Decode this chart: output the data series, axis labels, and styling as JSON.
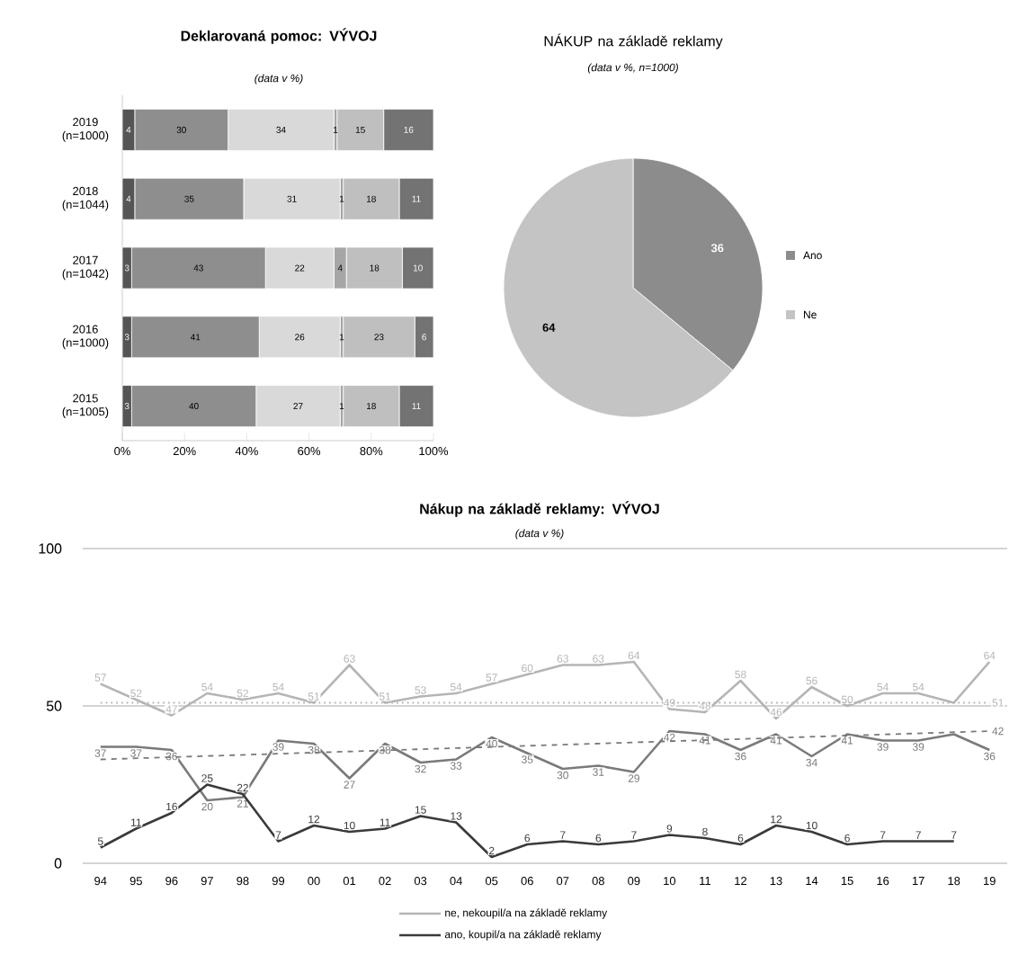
{
  "chart_data": [
    {
      "type": "bar",
      "orientation": "horizontal",
      "stacked": true,
      "title": "Deklarovaná pomoc: VÝVOJ",
      "subtitle": "(data v %)",
      "categories": [
        "2019 (n=1000)",
        "2018 (n=1044)",
        "2017 (n=1042)",
        "2016 (n=1000)",
        "2015 (n=1005)"
      ],
      "series": [
        {
          "color": "#555555",
          "values": [
            4,
            4,
            3,
            3,
            3
          ]
        },
        {
          "color": "#8e8e8e",
          "values": [
            30,
            35,
            43,
            41,
            40
          ]
        },
        {
          "color": "#d9d9d9",
          "values": [
            34,
            31,
            22,
            26,
            27
          ]
        },
        {
          "color": "#a6a6a6",
          "values": [
            1,
            1,
            4,
            1,
            1
          ]
        },
        {
          "color": "#bfbfbf",
          "values": [
            15,
            18,
            18,
            23,
            18
          ]
        },
        {
          "color": "#737373",
          "values": [
            16,
            11,
            10,
            6,
            11
          ]
        }
      ],
      "xlim": [
        0,
        100
      ],
      "xticks": [
        {
          "value": 0,
          "label": "0%"
        },
        {
          "value": 20,
          "label": "20%"
        },
        {
          "value": 40,
          "label": "40%"
        },
        {
          "value": 60,
          "label": "60%"
        },
        {
          "value": 80,
          "label": "80%"
        },
        {
          "value": 100,
          "label": "100%"
        }
      ],
      "data_labels": true
    },
    {
      "type": "pie",
      "title": "NÁKUP na základě reklamy",
      "subtitle": "(data v %, n=1000)",
      "categories": [
        "Ano",
        "Ne"
      ],
      "values": [
        36,
        64
      ],
      "colors": [
        "#8c8c8c",
        "#c4c4c4"
      ],
      "data_labels": true,
      "legend": "right"
    },
    {
      "type": "line",
      "title": "Nákup na základě reklamy: VÝVOJ",
      "subtitle": "(data v %)",
      "categories": [
        "94",
        "95",
        "96",
        "97",
        "98",
        "99",
        "00",
        "01",
        "02",
        "03",
        "04",
        "05",
        "06",
        "07",
        "08",
        "09",
        "10",
        "11",
        "12",
        "13",
        "14",
        "15",
        "16",
        "17",
        "18",
        "19"
      ],
      "series": [
        {
          "name": "ne, nekoupil/a na základě reklamy",
          "color": "#b5b5b5",
          "values": [
            57,
            52,
            47,
            54,
            52,
            54,
            51,
            63,
            51,
            53,
            54,
            57,
            60,
            63,
            63,
            64,
            49,
            48,
            58,
            46,
            56,
            50,
            54,
            54,
            51,
            64
          ],
          "value_labels": [
            "57",
            "52",
            "47",
            "54",
            "52",
            "54",
            "51",
            "63",
            "51",
            "53",
            "54",
            "57",
            "60",
            "63",
            "63",
            "64",
            "49",
            "48",
            "58",
            "46",
            "56",
            "50",
            "54",
            "54",
            null,
            "64"
          ]
        },
        {
          "color": "#7a7a7a",
          "values": [
            37,
            37,
            36,
            20,
            21,
            39,
            38,
            27,
            38,
            32,
            33,
            40,
            35,
            30,
            31,
            29,
            42,
            41,
            36,
            41,
            34,
            41,
            39,
            39,
            41,
            36
          ],
          "value_labels": [
            "37",
            "37",
            "36",
            "20",
            "21",
            "39",
            "38",
            "27",
            "38",
            "32",
            "33",
            "40",
            "35",
            "30",
            "31",
            "29",
            "42",
            "41",
            "36",
            "41",
            "34",
            "41",
            "39",
            "39",
            null,
            "36"
          ]
        },
        {
          "name": "ano, koupil/a na základě reklamy",
          "color": "#3a3a3a",
          "values": [
            5,
            11,
            16,
            25,
            22,
            7,
            12,
            10,
            11,
            15,
            13,
            2,
            6,
            7,
            6,
            7,
            9,
            8,
            6,
            12,
            10,
            6,
            7,
            7,
            7,
            null
          ],
          "value_labels": [
            "5",
            "11",
            "16",
            "25",
            "22",
            "7",
            "12",
            "10",
            "11",
            "15",
            "13",
            "2",
            "6",
            "7",
            "6",
            "7",
            "9",
            "8",
            "6",
            "12",
            "10",
            "6",
            "7",
            "7",
            "7",
            null
          ]
        },
        {
          "color": "#b5b5b5",
          "line_style": "dotted",
          "x": [
            "94",
            "19"
          ],
          "values": [
            51,
            51
          ],
          "value_labels": [
            null,
            "51"
          ]
        },
        {
          "color": "#7a7a7a",
          "line_style": "dashed",
          "x": [
            "94",
            "19"
          ],
          "values": [
            33,
            42
          ],
          "value_labels": [
            null,
            "42"
          ]
        }
      ],
      "ylim": [
        0,
        100
      ],
      "yticks": [
        0,
        50,
        100
      ],
      "grid": "y",
      "marker": "none",
      "line_style": "solid",
      "legend": "bottom"
    }
  ]
}
